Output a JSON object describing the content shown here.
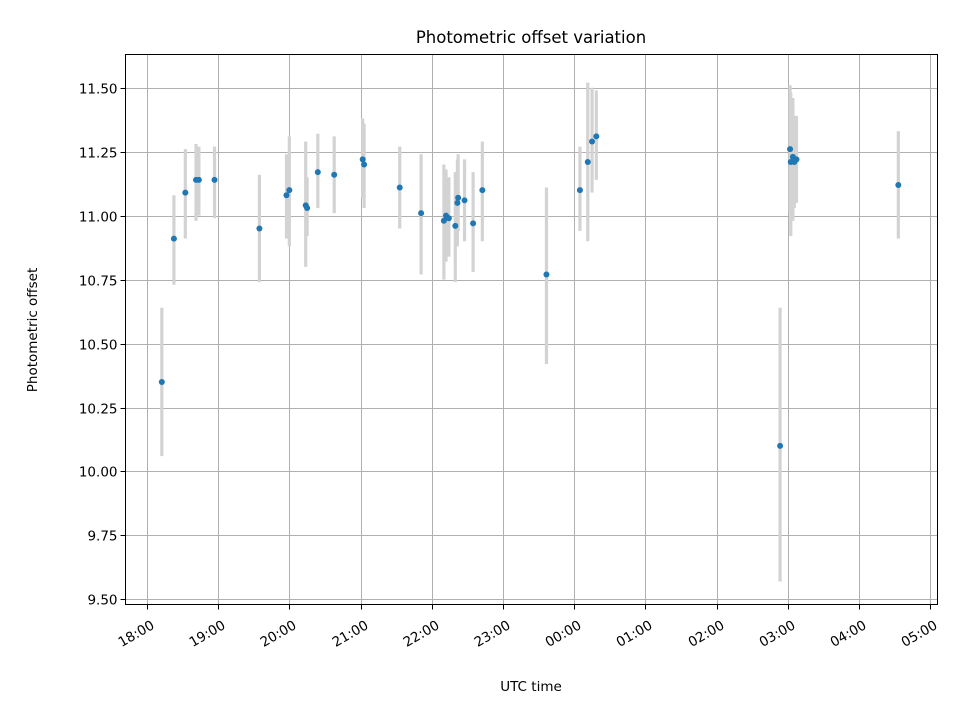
{
  "chart_data": {
    "type": "scatter",
    "title": "Photometric offset variation",
    "xlabel": "UTC time",
    "ylabel": "Photometric offset",
    "x_unit": "hours",
    "xlim": [
      17.7,
      29.1
    ],
    "ylim": [
      9.48,
      11.63
    ],
    "yticks": [
      9.5,
      9.75,
      10.0,
      10.25,
      10.5,
      10.75,
      11.0,
      11.25,
      11.5
    ],
    "ytick_labels": [
      "9.50",
      "9.75",
      "10.00",
      "10.25",
      "10.50",
      "10.75",
      "11.00",
      "11.25",
      "11.50"
    ],
    "xticks": [
      18,
      19,
      20,
      21,
      22,
      23,
      24,
      25,
      26,
      27,
      28,
      29
    ],
    "xtick_labels": [
      "18:00",
      "19:00",
      "20:00",
      "21:00",
      "22:00",
      "23:00",
      "00:00",
      "01:00",
      "02:00",
      "03:00",
      "04:00",
      "05:00"
    ],
    "grid": true,
    "colors": {
      "points": "#1f77b4",
      "errorbars": "#d3d3d3",
      "grid": "#b0b0b0"
    },
    "series": [
      {
        "points": [
          {
            "x": 18.21,
            "y": 10.35,
            "lo": 10.06,
            "hi": 10.64
          },
          {
            "x": 18.38,
            "y": 10.91,
            "lo": 10.73,
            "hi": 11.08
          },
          {
            "x": 18.54,
            "y": 11.09,
            "lo": 10.91,
            "hi": 11.26
          },
          {
            "x": 18.69,
            "y": 11.14,
            "lo": 10.98,
            "hi": 11.28
          },
          {
            "x": 18.73,
            "y": 11.14,
            "lo": 11.0,
            "hi": 11.27
          },
          {
            "x": 18.95,
            "y": 11.14,
            "lo": 10.99,
            "hi": 11.27
          },
          {
            "x": 19.58,
            "y": 10.95,
            "lo": 10.74,
            "hi": 11.16
          },
          {
            "x": 19.96,
            "y": 11.08,
            "lo": 10.91,
            "hi": 11.24
          },
          {
            "x": 20.0,
            "y": 11.1,
            "lo": 10.88,
            "hi": 11.31
          },
          {
            "x": 20.23,
            "y": 11.04,
            "lo": 10.8,
            "hi": 11.29
          },
          {
            "x": 20.25,
            "y": 11.03,
            "lo": 10.92,
            "hi": 11.15
          },
          {
            "x": 20.4,
            "y": 11.17,
            "lo": 11.03,
            "hi": 11.32
          },
          {
            "x": 20.63,
            "y": 11.16,
            "lo": 11.01,
            "hi": 11.31
          },
          {
            "x": 21.03,
            "y": 11.22,
            "lo": 11.07,
            "hi": 11.38
          },
          {
            "x": 21.05,
            "y": 11.2,
            "lo": 11.03,
            "hi": 11.36
          },
          {
            "x": 21.55,
            "y": 11.11,
            "lo": 10.95,
            "hi": 11.27
          },
          {
            "x": 21.85,
            "y": 11.01,
            "lo": 10.77,
            "hi": 11.24
          },
          {
            "x": 22.17,
            "y": 10.98,
            "lo": 10.75,
            "hi": 11.2
          },
          {
            "x": 22.2,
            "y": 11.0,
            "lo": 10.82,
            "hi": 11.18
          },
          {
            "x": 22.24,
            "y": 10.99,
            "lo": 10.84,
            "hi": 11.15
          },
          {
            "x": 22.33,
            "y": 10.96,
            "lo": 10.74,
            "hi": 11.17
          },
          {
            "x": 22.36,
            "y": 11.05,
            "lo": 10.88,
            "hi": 11.22
          },
          {
            "x": 22.37,
            "y": 11.07,
            "lo": 10.94,
            "hi": 11.24
          },
          {
            "x": 22.46,
            "y": 11.06,
            "lo": 10.9,
            "hi": 11.22
          },
          {
            "x": 22.58,
            "y": 10.97,
            "lo": 10.78,
            "hi": 11.17
          },
          {
            "x": 22.71,
            "y": 11.1,
            "lo": 10.9,
            "hi": 11.29
          },
          {
            "x": 23.61,
            "y": 10.77,
            "lo": 10.42,
            "hi": 11.11
          },
          {
            "x": 24.08,
            "y": 11.1,
            "lo": 10.94,
            "hi": 11.27
          },
          {
            "x": 24.19,
            "y": 11.21,
            "lo": 10.9,
            "hi": 11.52
          },
          {
            "x": 24.25,
            "y": 11.29,
            "lo": 11.09,
            "hi": 11.5
          },
          {
            "x": 24.31,
            "y": 11.31,
            "lo": 11.14,
            "hi": 11.49
          },
          {
            "x": 26.89,
            "y": 10.1,
            "lo": 9.57,
            "hi": 10.64
          },
          {
            "x": 27.03,
            "y": 11.26,
            "lo": 11.01,
            "hi": 11.51
          },
          {
            "x": 27.04,
            "y": 11.21,
            "lo": 10.92,
            "hi": 11.48
          },
          {
            "x": 27.07,
            "y": 11.23,
            "lo": 10.98,
            "hi": 11.46
          },
          {
            "x": 27.09,
            "y": 11.21,
            "lo": 11.03,
            "hi": 11.39
          },
          {
            "x": 27.12,
            "y": 11.22,
            "lo": 11.05,
            "hi": 11.39
          },
          {
            "x": 28.55,
            "y": 11.12,
            "lo": 10.91,
            "hi": 11.33
          }
        ]
      }
    ]
  }
}
